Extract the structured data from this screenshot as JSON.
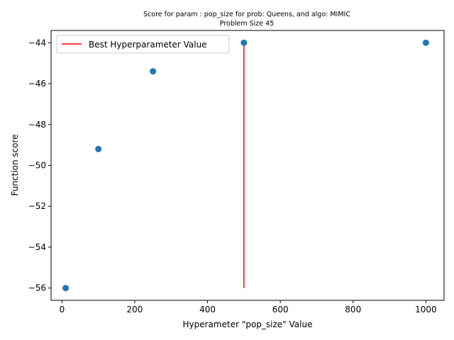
{
  "chart_data": {
    "type": "scatter",
    "title": "Score for param : pop_size for prob: Queens, and algo: MIMIC",
    "subtitle": "Problem Size 45",
    "xlabel": "Hyperameter \"pop_size\" Value",
    "ylabel": "Function score",
    "xlim": [
      -30,
      1050
    ],
    "ylim": [
      -56.6,
      -43.4
    ],
    "xticks": [
      0,
      200,
      400,
      600,
      800,
      1000
    ],
    "yticks": [
      -56,
      -54,
      -52,
      -50,
      -48,
      -46,
      -44
    ],
    "ytick_labels": [
      "−56",
      "−54",
      "−52",
      "−50",
      "−48",
      "−46",
      "−44"
    ],
    "grid": false,
    "legend_position": "top-left",
    "points": {
      "x": [
        10,
        100,
        250,
        500,
        1000
      ],
      "y": [
        -56.0,
        -49.2,
        -45.4,
        -44.0,
        -44.0
      ],
      "color": "#1f77b4"
    },
    "best_line": {
      "name": "Best Hyperparameter Value",
      "x": 500,
      "y_from": -56.0,
      "y_to": -44.0,
      "color": "#ff0000"
    }
  }
}
